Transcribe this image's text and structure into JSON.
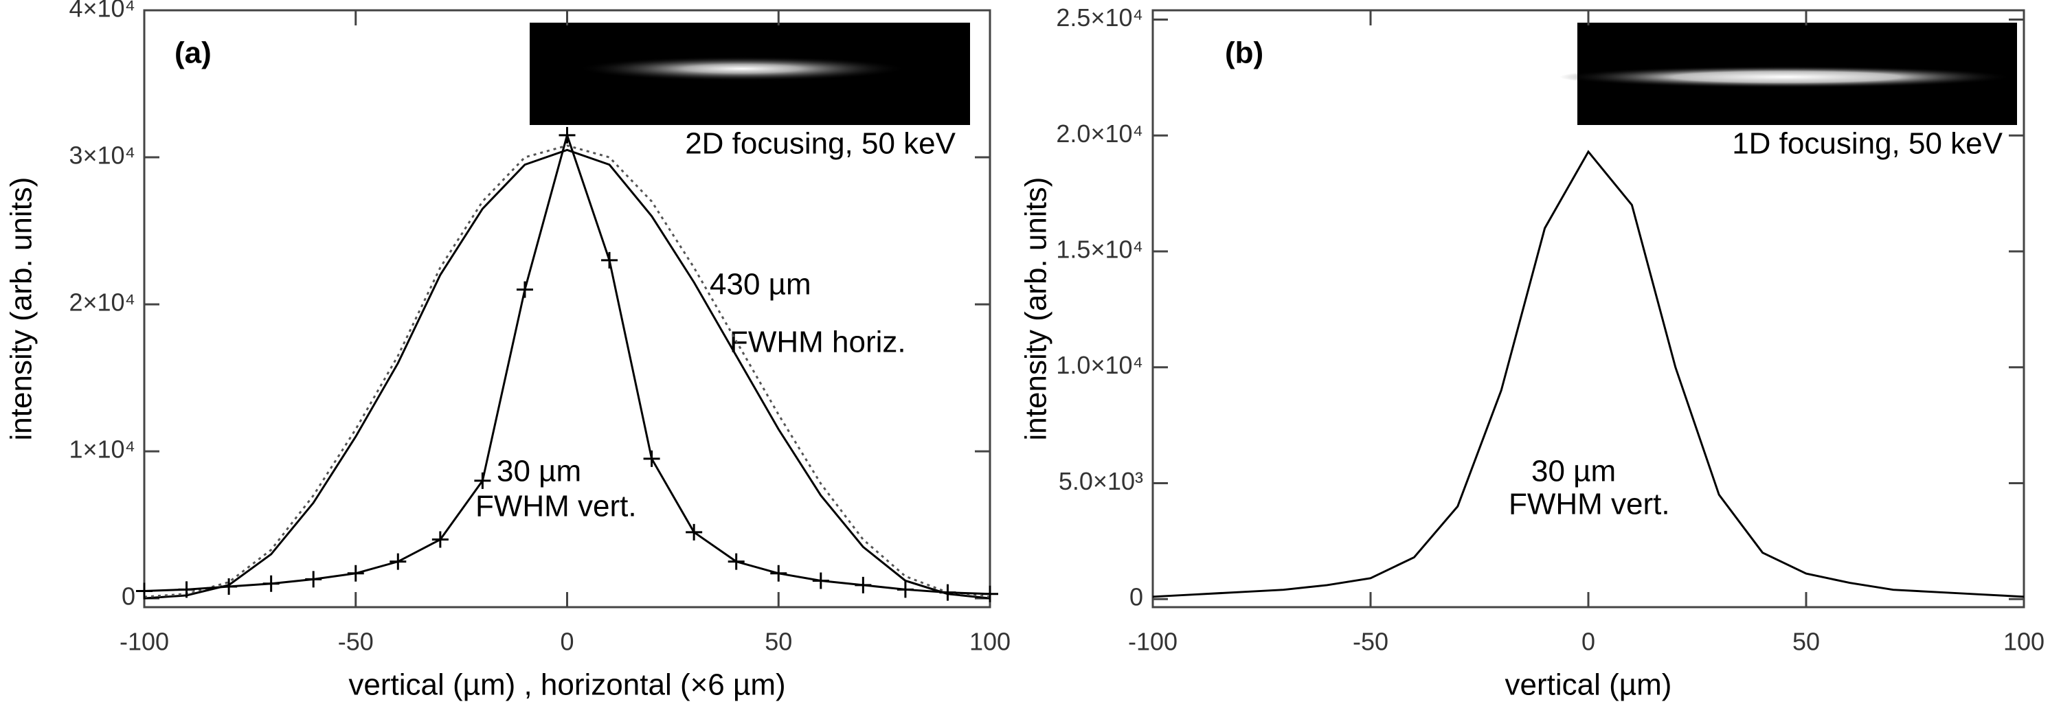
{
  "chart_data": [
    {
      "type": "line",
      "panel_label": "(a)",
      "inset_caption": "2D focusing, 50 keV",
      "xlabel": "vertical (µm) , horizontal (×6 µm)",
      "ylabel": "intensity (arb. units)",
      "annotations": [
        "430 µm",
        "FWHM horiz.",
        "30 µm",
        "FWHM vert."
      ],
      "x": [
        -100,
        -90,
        -80,
        -70,
        -60,
        -50,
        -40,
        -30,
        -20,
        -10,
        0,
        10,
        20,
        30,
        40,
        50,
        60,
        70,
        80,
        90,
        100
      ],
      "series": [
        {
          "color": "#000000",
          "style": "solid",
          "values": [
            0,
            200,
            900,
            3000,
            6500,
            11000,
            16000,
            22000,
            26500,
            29500,
            30500,
            29500,
            26000,
            21500,
            16500,
            11500,
            7000,
            3500,
            1200,
            300,
            0
          ]
        },
        {
          "color": "#555555",
          "style": "dotted",
          "values": [
            100,
            300,
            1100,
            3300,
            7000,
            11500,
            16500,
            22500,
            27000,
            30000,
            30800,
            30000,
            27000,
            22500,
            17500,
            12500,
            7800,
            4000,
            1500,
            400,
            100
          ]
        },
        {
          "color": "#000000",
          "style": "solid",
          "marker": "plus",
          "values": [
            500,
            600,
            800,
            1000,
            1300,
            1700,
            2500,
            4000,
            8000,
            21000,
            31500,
            23000,
            9500,
            4500,
            2500,
            1700,
            1200,
            900,
            600,
            400,
            300
          ]
        }
      ],
      "xlim": [
        -100,
        100
      ],
      "ylim": [
        -600,
        40000
      ],
      "xticks": [
        -100,
        -50,
        0,
        50,
        100
      ],
      "yticks": [
        0,
        {
          "value": 10000,
          "label": "1×10⁴"
        },
        {
          "value": 20000,
          "label": "2×10⁴"
        },
        {
          "value": 30000,
          "label": "3×10⁴"
        },
        {
          "value": 40000,
          "label": "4×10⁴"
        }
      ]
    },
    {
      "type": "line",
      "panel_label": "(b)",
      "inset_caption": "1D focusing, 50 keV",
      "xlabel": "vertical (µm)",
      "ylabel": "intensity (arb. units)",
      "annotations": [
        "30 µm",
        "FWHM vert."
      ],
      "x": [
        -100,
        -90,
        -80,
        -70,
        -60,
        -50,
        -40,
        -30,
        -20,
        -10,
        0,
        10,
        20,
        30,
        40,
        50,
        60,
        70,
        80,
        90,
        100
      ],
      "series": [
        {
          "color": "#000000",
          "style": "solid",
          "values": [
            100,
            200,
            300,
            400,
            600,
            900,
            1800,
            4000,
            9000,
            16000,
            19300,
            17000,
            10000,
            4500,
            2000,
            1100,
            700,
            400,
            300,
            200,
            100
          ]
        }
      ],
      "xlim": [
        -100,
        100
      ],
      "ylim": [
        -350,
        25400
      ],
      "xticks": [
        -100,
        -50,
        0,
        50,
        100
      ],
      "yticks": [
        0,
        {
          "value": 5000,
          "label": "5.0×10³"
        },
        {
          "value": 10000,
          "label": "1.0×10⁴"
        },
        {
          "value": 15000,
          "label": "1.5×10⁴"
        },
        {
          "value": 20000,
          "label": "2.0×10⁴"
        },
        {
          "value": 25000,
          "label": "2.5×10⁴"
        }
      ]
    }
  ]
}
